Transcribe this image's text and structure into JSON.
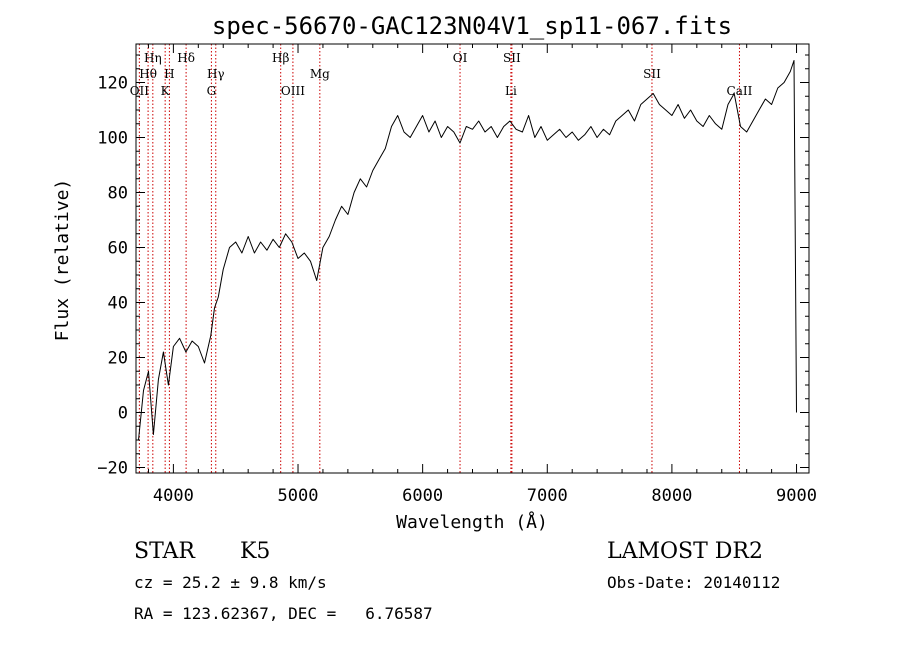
{
  "chart_data": {
    "type": "line",
    "title": "spec-56670-GAC123N04V1_sp11-067.fits",
    "xlabel": "Wavelength (Å)",
    "ylabel": "Flux (relative)",
    "xlim": [
      3700,
      9100
    ],
    "ylim": [
      -22,
      134
    ],
    "x_ticks": [
      4000,
      5000,
      6000,
      7000,
      8000,
      9000
    ],
    "y_ticks": [
      -20,
      0,
      20,
      40,
      60,
      80,
      100,
      120
    ],
    "grid": false,
    "line_color": "#000000",
    "marker_color": "#cc0000",
    "series": [
      {
        "x": [
          3720,
          3760,
          3800,
          3840,
          3880,
          3920,
          3960,
          4000,
          4050,
          4100,
          4150,
          4200,
          4250,
          4300,
          4330,
          4360,
          4400,
          4450,
          4500,
          4550,
          4600,
          4650,
          4700,
          4750,
          4800,
          4850,
          4900,
          4950,
          5000,
          5050,
          5100,
          5150,
          5200,
          5250,
          5300,
          5350,
          5400,
          5450,
          5500,
          5550,
          5600,
          5650,
          5700,
          5750,
          5800,
          5850,
          5900,
          5950,
          6000,
          6050,
          6100,
          6150,
          6200,
          6250,
          6300,
          6350,
          6400,
          6450,
          6500,
          6550,
          6600,
          6650,
          6700,
          6750,
          6800,
          6850,
          6900,
          6950,
          7000,
          7050,
          7100,
          7150,
          7200,
          7250,
          7300,
          7350,
          7400,
          7450,
          7500,
          7550,
          7600,
          7650,
          7700,
          7750,
          7800,
          7850,
          7900,
          7950,
          8000,
          8050,
          8100,
          8150,
          8200,
          8250,
          8300,
          8350,
          8400,
          8450,
          8500,
          8550,
          8600,
          8650,
          8700,
          8750,
          8800,
          8850,
          8900,
          8950,
          8980,
          9000
        ],
        "y": [
          -10,
          8,
          15,
          -8,
          12,
          22,
          10,
          24,
          27,
          22,
          26,
          24,
          18,
          28,
          38,
          42,
          52,
          60,
          62,
          58,
          64,
          58,
          62,
          59,
          63,
          60,
          65,
          62,
          56,
          58,
          55,
          48,
          60,
          64,
          70,
          75,
          72,
          80,
          85,
          82,
          88,
          92,
          96,
          104,
          108,
          102,
          100,
          104,
          108,
          102,
          106,
          100,
          104,
          102,
          98,
          104,
          103,
          106,
          102,
          104,
          100,
          104,
          106,
          103,
          102,
          108,
          100,
          104,
          99,
          101,
          103,
          100,
          102,
          99,
          101,
          104,
          100,
          103,
          101,
          106,
          108,
          110,
          106,
          112,
          114,
          116,
          112,
          110,
          108,
          112,
          107,
          110,
          106,
          104,
          108,
          105,
          103,
          112,
          116,
          104,
          102,
          106,
          110,
          114,
          112,
          118,
          120,
          124,
          128,
          0
        ]
      }
    ],
    "line_markers": [
      {
        "label": "Hη",
        "wl": 3835,
        "row": 1
      },
      {
        "label": "Hθ",
        "wl": 3797,
        "row": 2
      },
      {
        "label": "OII",
        "wl": 3727,
        "row": 3
      },
      {
        "label": "Hδ",
        "wl": 4102,
        "row": 1
      },
      {
        "label": "H",
        "wl": 3968,
        "row": 2
      },
      {
        "label": "K",
        "wl": 3934,
        "row": 3
      },
      {
        "label": "Hγ",
        "wl": 4340,
        "row": 2
      },
      {
        "label": "G",
        "wl": 4305,
        "row": 3
      },
      {
        "label": "Hβ",
        "wl": 4861,
        "row": 1
      },
      {
        "label": "OIII",
        "wl": 4959,
        "row": 3
      },
      {
        "label": "Mg",
        "wl": 5175,
        "row": 2
      },
      {
        "label": "OI",
        "wl": 6300,
        "row": 1
      },
      {
        "label": "SII",
        "wl": 6716,
        "row": 1
      },
      {
        "label": "Li",
        "wl": 6708,
        "row": 3
      },
      {
        "label": "SII",
        "wl": 7840,
        "row": 2
      },
      {
        "label": "CaII",
        "wl": 8542,
        "row": 3
      }
    ]
  },
  "info": {
    "class": "STAR",
    "subclass": "K5",
    "survey": "LAMOST DR2",
    "cz": "cz = 25.2 ± 9.8 km/s",
    "obs_date": "Obs-Date: 20140112",
    "coords": "RA = 123.62367, DEC =   6.76587"
  }
}
